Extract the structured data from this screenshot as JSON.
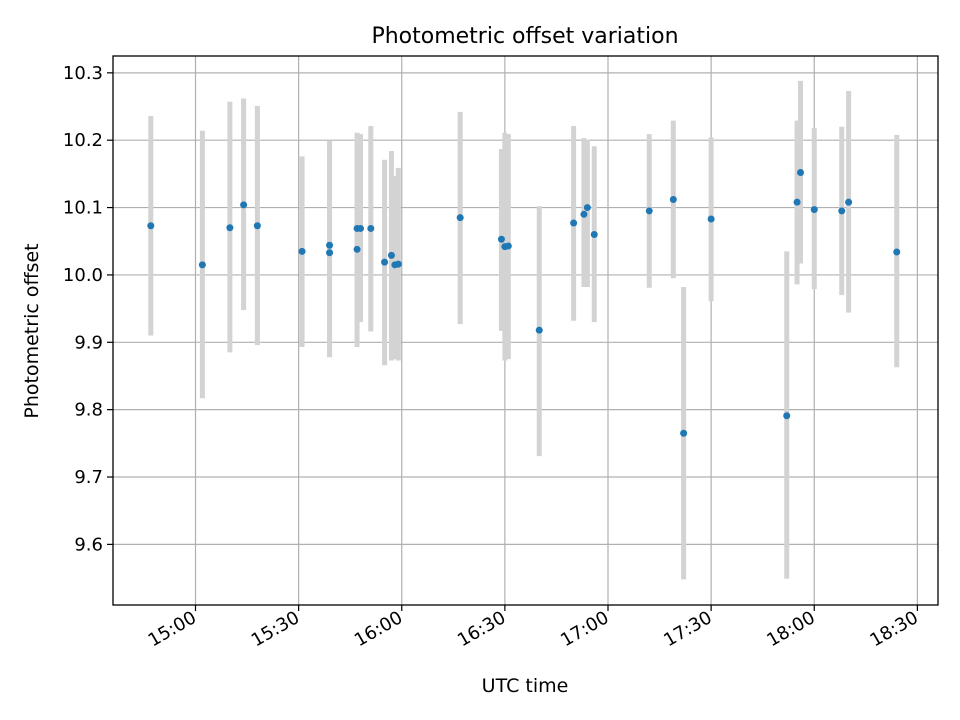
{
  "chart_data": {
    "type": "scatter",
    "title": "Photometric offset variation",
    "xlabel": "UTC time",
    "ylabel": "Photometric offset",
    "grid": true,
    "xlim": [
      "14:36",
      "18:36"
    ],
    "ylim": [
      9.51,
      10.325
    ],
    "x_ticks": [
      "15:00",
      "15:30",
      "16:00",
      "16:30",
      "17:00",
      "17:30",
      "18:00",
      "18:30"
    ],
    "y_ticks": [
      "9.6",
      "9.7",
      "9.8",
      "9.9",
      "10.0",
      "10.1",
      "10.2",
      "10.3"
    ],
    "colors": {
      "point": "#1f77b4",
      "errorbar": "#d3d3d3",
      "grid": "#b0b0b0"
    },
    "points": [
      {
        "time": "14:47",
        "y": 10.073,
        "ylow": 9.91,
        "yhigh": 10.236
      },
      {
        "time": "15:02",
        "y": 10.015,
        "ylow": 9.817,
        "yhigh": 10.214
      },
      {
        "time": "15:10",
        "y": 10.07,
        "ylow": 9.885,
        "yhigh": 10.257
      },
      {
        "time": "15:14",
        "y": 10.104,
        "ylow": 9.948,
        "yhigh": 10.262
      },
      {
        "time": "15:18",
        "y": 10.073,
        "ylow": 9.896,
        "yhigh": 10.251
      },
      {
        "time": "15:31",
        "y": 10.035,
        "ylow": 9.893,
        "yhigh": 10.176
      },
      {
        "time": "15:39",
        "y": 10.044,
        "ylow": 9.878,
        "yhigh": 10.199
      },
      {
        "time": "15:39",
        "y": 10.033,
        "ylow": 9.878,
        "yhigh": 10.196
      },
      {
        "time": "15:47",
        "y": 10.038,
        "ylow": 9.893,
        "yhigh": 10.182
      },
      {
        "time": "15:47",
        "y": 10.069,
        "ylow": 9.928,
        "yhigh": 10.211
      },
      {
        "time": "15:48",
        "y": 10.069,
        "ylow": 9.93,
        "yhigh": 10.209
      },
      {
        "time": "15:51",
        "y": 10.069,
        "ylow": 9.916,
        "yhigh": 10.221
      },
      {
        "time": "15:55",
        "y": 10.019,
        "ylow": 9.866,
        "yhigh": 10.171
      },
      {
        "time": "15:57",
        "y": 10.029,
        "ylow": 9.873,
        "yhigh": 10.184
      },
      {
        "time": "15:58",
        "y": 10.015,
        "ylow": 9.875,
        "yhigh": 10.147
      },
      {
        "time": "15:59",
        "y": 10.016,
        "ylow": 9.873,
        "yhigh": 10.159
      },
      {
        "time": "16:17",
        "y": 10.085,
        "ylow": 9.927,
        "yhigh": 10.242
      },
      {
        "time": "16:29",
        "y": 10.053,
        "ylow": 9.917,
        "yhigh": 10.187
      },
      {
        "time": "16:30",
        "y": 10.042,
        "ylow": 9.873,
        "yhigh": 10.211
      },
      {
        "time": "16:31",
        "y": 10.043,
        "ylow": 9.875,
        "yhigh": 10.209
      },
      {
        "time": "16:40",
        "y": 9.918,
        "ylow": 9.731,
        "yhigh": 10.102
      },
      {
        "time": "16:50",
        "y": 10.077,
        "ylow": 9.932,
        "yhigh": 10.221
      },
      {
        "time": "16:53",
        "y": 10.09,
        "ylow": 9.982,
        "yhigh": 10.203
      },
      {
        "time": "16:54",
        "y": 10.1,
        "ylow": 9.982,
        "yhigh": 10.201
      },
      {
        "time": "16:56",
        "y": 10.06,
        "ylow": 9.93,
        "yhigh": 10.191
      },
      {
        "time": "17:12",
        "y": 10.095,
        "ylow": 9.981,
        "yhigh": 10.209
      },
      {
        "time": "17:19",
        "y": 10.112,
        "ylow": 9.995,
        "yhigh": 10.229
      },
      {
        "time": "17:22",
        "y": 9.765,
        "ylow": 9.548,
        "yhigh": 9.982
      },
      {
        "time": "17:30",
        "y": 10.083,
        "ylow": 9.961,
        "yhigh": 10.204
      },
      {
        "time": "17:52",
        "y": 9.791,
        "ylow": 9.549,
        "yhigh": 10.035
      },
      {
        "time": "17:55",
        "y": 10.108,
        "ylow": 9.986,
        "yhigh": 10.229
      },
      {
        "time": "17:56",
        "y": 10.152,
        "ylow": 10.017,
        "yhigh": 10.288
      },
      {
        "time": "18:00",
        "y": 10.097,
        "ylow": 9.979,
        "yhigh": 10.218
      },
      {
        "time": "18:08",
        "y": 10.095,
        "ylow": 9.97,
        "yhigh": 10.22
      },
      {
        "time": "18:10",
        "y": 10.108,
        "ylow": 9.944,
        "yhigh": 10.273
      },
      {
        "time": "18:24",
        "y": 10.034,
        "ylow": 9.863,
        "yhigh": 10.208
      }
    ]
  }
}
